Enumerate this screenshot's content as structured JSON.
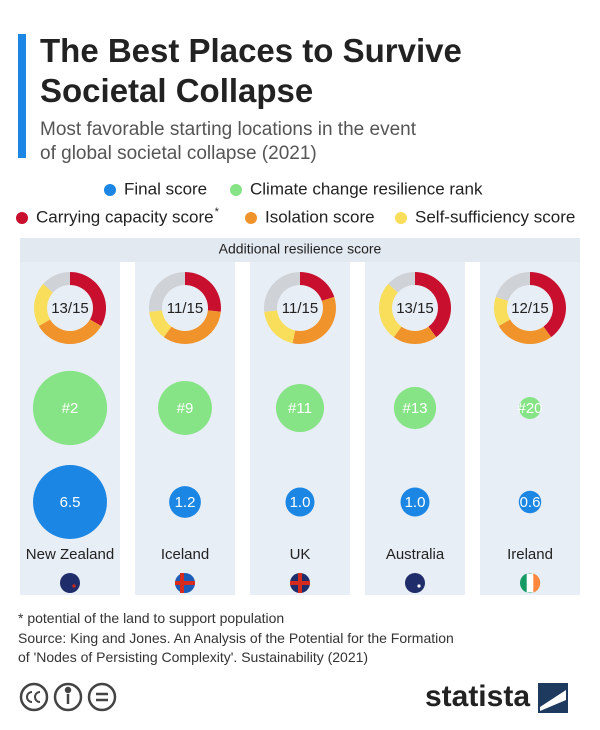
{
  "chart_data": {
    "type": "bubble",
    "title": [
      "The Best Places to Survive",
      "Societal Collapse"
    ],
    "subtitle": [
      "Most favorable starting locations in the event",
      "of global societal collapse (2021)"
    ],
    "categories": [
      "New Zealand",
      "Iceland",
      "UK",
      "Australia",
      "Ireland"
    ],
    "panel_label": "Additional resilience score",
    "additional_scores": {
      "values": [
        13,
        11,
        11,
        13,
        12
      ],
      "value_labels": [
        "13/15",
        "11/15",
        "11/15",
        "13/15",
        "12/15"
      ],
      "max": 15,
      "remainder_color": "#cfd2d6"
    },
    "series": [
      {
        "name": "Final score",
        "color": "#1b86e3",
        "values": [
          6.5,
          1.2,
          1.0,
          1.0,
          0.6
        ],
        "value_labels": [
          "6.5",
          "1.2",
          "1.0",
          "1.0",
          "0.6"
        ]
      },
      {
        "name": "Climate change resilience rank",
        "color": "#86e486",
        "values": [
          2,
          9,
          11,
          13,
          20
        ],
        "value_labels": [
          "#2",
          "#9",
          "#11",
          "#13",
          "#20"
        ]
      },
      {
        "name": "Carrying capacity score",
        "note": "*",
        "color": "#c8102e",
        "values": [
          5,
          4,
          3,
          6,
          6
        ]
      },
      {
        "name": "Isolation score",
        "color": "#f0932b",
        "values": [
          5,
          5,
          5,
          3,
          4
        ]
      },
      {
        "name": "Self-sufficiency score",
        "color": "#f8de5a",
        "values": [
          3,
          2,
          3,
          4,
          2
        ]
      }
    ],
    "footnote": "* potential of the land to support population",
    "source": [
      "Source: King and Jones. An Analysis of the Potential for the Formation",
      "of 'Nodes of Persisting Complexity'. Sustainability (2021)"
    ],
    "brand": "statista"
  }
}
